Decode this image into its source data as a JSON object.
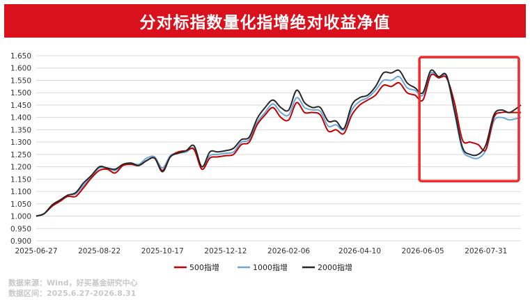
{
  "colors": {
    "brand": "#d8111d",
    "series_500": "#c00000",
    "series_1000": "#6aa6d8",
    "series_2000": "#262626",
    "highlight_box": "#ef2b2b"
  },
  "footer": {
    "source": "数据来源：Wind，好买基金研究中心",
    "range": "数据区间：2025.6.27-2026.8.31"
  },
  "chart_data": {
    "type": "line",
    "title": "分对标指数量化指增绝对收益净值",
    "xlabel": "",
    "ylabel": "",
    "ylim": [
      0.9,
      1.65
    ],
    "yticks": [
      "1.650",
      "1.600",
      "1.550",
      "1.500",
      "1.450",
      "1.400",
      "1.350",
      "1.300",
      "1.250",
      "1.200",
      "1.150",
      "1.100",
      "1.050",
      "1.000",
      "0.950",
      "0.900"
    ],
    "xticks": [
      "2025-06-27",
      "2025-08-22",
      "2025-10-17",
      "2025-12-12",
      "2026-02-06",
      "2026-04-10",
      "2026-06-05",
      "2026-07-31"
    ],
    "x_range": [
      "2025-06-27",
      "2026-08-31"
    ],
    "grid": "horizontal",
    "legend_position": "bottom",
    "highlight_box": {
      "x_range": [
        "2026-06-05",
        "2026-08-31"
      ],
      "y_range": [
        1.17,
        1.61
      ]
    },
    "x": [
      "2025-06-27",
      "2025-07-04",
      "2025-07-11",
      "2025-07-18",
      "2025-07-25",
      "2025-08-01",
      "2025-08-08",
      "2025-08-15",
      "2025-08-22",
      "2025-08-29",
      "2025-09-05",
      "2025-09-12",
      "2025-09-19",
      "2025-09-26",
      "2025-10-03",
      "2025-10-10",
      "2025-10-17",
      "2025-10-24",
      "2025-10-31",
      "2025-11-07",
      "2025-11-14",
      "2025-11-21",
      "2025-11-28",
      "2025-12-05",
      "2025-12-12",
      "2025-12-19",
      "2025-12-26",
      "2026-01-02",
      "2026-01-09",
      "2026-01-16",
      "2026-01-23",
      "2026-01-30",
      "2026-02-06",
      "2026-02-13",
      "2026-02-20",
      "2026-02-27",
      "2026-03-06",
      "2026-03-13",
      "2026-03-20",
      "2026-03-27",
      "2026-04-03",
      "2026-04-10",
      "2026-04-17",
      "2026-04-24",
      "2026-05-01",
      "2026-05-08",
      "2026-05-15",
      "2026-05-22",
      "2026-05-29",
      "2026-06-05",
      "2026-06-12",
      "2026-06-19",
      "2026-06-26",
      "2026-07-03",
      "2026-07-10",
      "2026-07-17",
      "2026-07-24",
      "2026-07-31",
      "2026-08-07",
      "2026-08-14",
      "2026-08-21",
      "2026-08-31"
    ],
    "series": [
      {
        "name": "500指增",
        "values": [
          1.0,
          1.01,
          1.04,
          1.06,
          1.08,
          1.08,
          1.115,
          1.155,
          1.185,
          1.19,
          1.175,
          1.205,
          1.21,
          1.205,
          1.225,
          1.235,
          1.185,
          1.24,
          1.26,
          1.265,
          1.27,
          1.19,
          1.235,
          1.24,
          1.245,
          1.25,
          1.29,
          1.3,
          1.37,
          1.41,
          1.44,
          1.4,
          1.39,
          1.46,
          1.42,
          1.42,
          1.41,
          1.345,
          1.35,
          1.335,
          1.41,
          1.45,
          1.47,
          1.49,
          1.53,
          1.525,
          1.54,
          1.5,
          1.49,
          1.47,
          1.57,
          1.56,
          1.56,
          1.46,
          1.31,
          1.3,
          1.29,
          1.27,
          1.4,
          1.42,
          1.42,
          1.42
        ]
      },
      {
        "name": "1000指增",
        "values": [
          1.0,
          1.01,
          1.04,
          1.06,
          1.085,
          1.09,
          1.125,
          1.16,
          1.195,
          1.195,
          1.185,
          1.21,
          1.215,
          1.21,
          1.235,
          1.24,
          1.195,
          1.245,
          1.255,
          1.26,
          1.275,
          1.2,
          1.245,
          1.25,
          1.255,
          1.26,
          1.3,
          1.31,
          1.38,
          1.42,
          1.455,
          1.42,
          1.41,
          1.48,
          1.44,
          1.43,
          1.425,
          1.365,
          1.37,
          1.35,
          1.43,
          1.465,
          1.48,
          1.51,
          1.55,
          1.55,
          1.565,
          1.52,
          1.51,
          1.49,
          1.58,
          1.56,
          1.565,
          1.42,
          1.27,
          1.24,
          1.235,
          1.27,
          1.385,
          1.4,
          1.39,
          1.4
        ]
      },
      {
        "name": "2000指增",
        "values": [
          1.0,
          1.01,
          1.045,
          1.065,
          1.085,
          1.095,
          1.135,
          1.165,
          1.2,
          1.195,
          1.19,
          1.21,
          1.215,
          1.205,
          1.225,
          1.235,
          1.18,
          1.24,
          1.255,
          1.265,
          1.285,
          1.2,
          1.26,
          1.26,
          1.265,
          1.275,
          1.31,
          1.32,
          1.395,
          1.44,
          1.47,
          1.44,
          1.43,
          1.51,
          1.46,
          1.44,
          1.44,
          1.385,
          1.385,
          1.355,
          1.45,
          1.48,
          1.49,
          1.525,
          1.58,
          1.58,
          1.59,
          1.54,
          1.52,
          1.5,
          1.59,
          1.565,
          1.57,
          1.43,
          1.28,
          1.25,
          1.25,
          1.29,
          1.41,
          1.43,
          1.42,
          1.45
        ]
      }
    ]
  }
}
